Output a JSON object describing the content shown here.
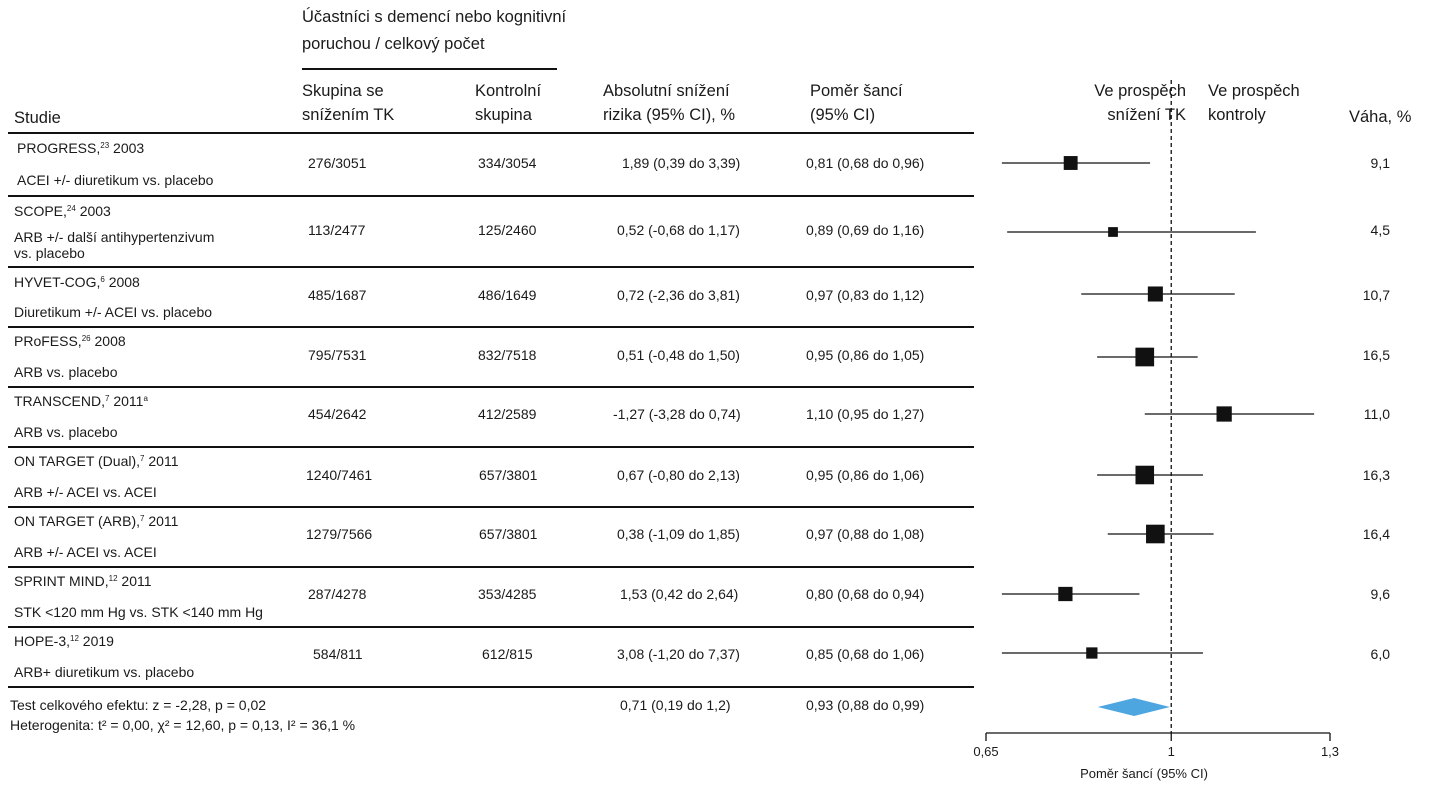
{
  "header": {
    "participants_group_line1": "Účastníci s demencí nebo kognitivní",
    "participants_group_line2": "poruchou / celkový počet",
    "col_study": "Studie",
    "col_treatment_line1": "Skupina se",
    "col_treatment_line2": "snížením TK",
    "col_control_line1": "Kontrolní",
    "col_control_line2": "skupina",
    "col_arr_line1": "Absolutní snížení",
    "col_arr_line2": "rizika (95% CI), %",
    "col_or_line1": "Poměr šancí",
    "col_or_line2": "(95% CI)",
    "favors_treatment_line1": "Ve prospěch",
    "favors_treatment_line2": "snížení TK",
    "favors_control_line1": "Ve prospěch",
    "favors_control_line2": "kontroly",
    "col_weight": "Váha, %"
  },
  "rows": [
    {
      "name": "PROGRESS,",
      "ref": "23",
      "year": " 2003",
      "desc": "ACEI +/- diuretikum vs. placebo",
      "treat": "276/3051",
      "ctrl": "334/3054",
      "arr": "1,89 (0,39 do 3,39)",
      "or": "0,81 (0,68 do 0,96)",
      "weight": "9,1"
    },
    {
      "name": "SCOPE,",
      "ref": "24",
      "year": " 2003",
      "desc": "ARB +/- další antihypertenzivum",
      "desc2": "vs. placebo",
      "treat": "113/2477",
      "ctrl": "125/2460",
      "arr": "0,52 (-0,68 do 1,17)",
      "or": "0,89 (0,69 do 1,16)",
      "weight": "4,5"
    },
    {
      "name": "HYVET-COG,",
      "ref": "6",
      "year": " 2008",
      "desc": "Diuretikum +/- ACEI vs. placebo",
      "treat": "485/1687",
      "ctrl": "486/1649",
      "arr": "0,72 (-2,36 do 3,81)",
      "or": "0,97 (0,83 do 1,12)",
      "weight": "10,7"
    },
    {
      "name": "PRoFESS,",
      "ref": "26",
      "year": " 2008",
      "desc": "ARB vs. placebo",
      "treat": "795/7531",
      "ctrl": "832/7518",
      "arr": "0,51 (-0,48 do 1,50)",
      "or": "0,95 (0,86 do 1,05)",
      "weight": "16,5"
    },
    {
      "name": "TRANSCEND,",
      "ref": "7",
      "year": " 2011",
      "ref2": "a",
      "desc": "ARB vs. placebo",
      "treat": "454/2642",
      "ctrl": "412/2589",
      "arr": "-1,27 (-3,28 do 0,74)",
      "or": "1,10 (0,95 do 1,27)",
      "weight": "11,0"
    },
    {
      "name": "ON TARGET (Dual),",
      "ref": "7",
      "year": " 2011",
      "desc": "ARB +/- ACEI vs. ACEI",
      "treat": "1240/7461",
      "ctrl": "657/3801",
      "arr": "0,67 (-0,80 do 2,13)",
      "or": "0,95 (0,86 do 1,06)",
      "weight": "16,3"
    },
    {
      "name": "ON TARGET (ARB),",
      "ref": "7",
      "year": " 2011",
      "desc": "ARB +/- ACEI vs. ACEI",
      "treat": "1279/7566",
      "ctrl": "657/3801",
      "arr": "0,38 (-1,09 do 1,85)",
      "or": "0,97 (0,88 do 1,08)",
      "weight": "16,4"
    },
    {
      "name": "SPRINT MIND,",
      "ref": "12",
      "year": " 2011",
      "desc": "STK <120 mm Hg vs. STK <140 mm Hg",
      "treat": "287/4278",
      "ctrl": "353/4285",
      "arr": "1,53 (0,42 do 2,64)",
      "or": "0,80 (0,68 do 0,94)",
      "weight": "9,6"
    },
    {
      "name": "HOPE-3,",
      "ref": "12",
      "year": " 2019",
      "desc": "ARB+ diuretikum vs. placebo",
      "treat": "584/811",
      "ctrl": "612/815",
      "arr": "3,08 (-1,20 do 7,37)",
      "or": "0,85 (0,68 do 1,06)",
      "weight": "6,0"
    }
  ],
  "summary": {
    "test_line": "Test celkového efektu: z = -2,28, p = 0,02",
    "heterogeneity_line": "Heterogenita: t² = 0,00, χ² = 12,60, p = 0,13, I² = 36,1 %",
    "arr": "0,71 (0,19 do 1,2)",
    "or": "0,93 (0,88 do 0,99)"
  },
  "chart_data": {
    "type": "forest",
    "xlabel": "Poměr šancí (95% CI)",
    "xlim": [
      0.65,
      1.3
    ],
    "ticks": [
      0.65,
      1,
      1.3
    ],
    "tick_labels": [
      "0,65",
      "1",
      "1,3"
    ],
    "reference_line": 1,
    "marker_color": "#111111",
    "diamond_color": "#4da6e0",
    "studies": [
      {
        "or": 0.81,
        "lo": 0.68,
        "hi": 0.96,
        "weight": 9.1
      },
      {
        "or": 0.89,
        "lo": 0.69,
        "hi": 1.16,
        "weight": 4.5
      },
      {
        "or": 0.97,
        "lo": 0.83,
        "hi": 1.12,
        "weight": 10.7
      },
      {
        "or": 0.95,
        "lo": 0.86,
        "hi": 1.05,
        "weight": 16.5
      },
      {
        "or": 1.1,
        "lo": 0.95,
        "hi": 1.27,
        "weight": 11.0
      },
      {
        "or": 0.95,
        "lo": 0.86,
        "hi": 1.06,
        "weight": 16.3
      },
      {
        "or": 0.97,
        "lo": 0.88,
        "hi": 1.08,
        "weight": 16.4
      },
      {
        "or": 0.8,
        "lo": 0.68,
        "hi": 0.94,
        "weight": 9.6
      },
      {
        "or": 0.85,
        "lo": 0.68,
        "hi": 1.06,
        "weight": 6.0
      }
    ],
    "pooled": {
      "or": 0.93,
      "lo": 0.88,
      "hi": 0.99
    }
  }
}
